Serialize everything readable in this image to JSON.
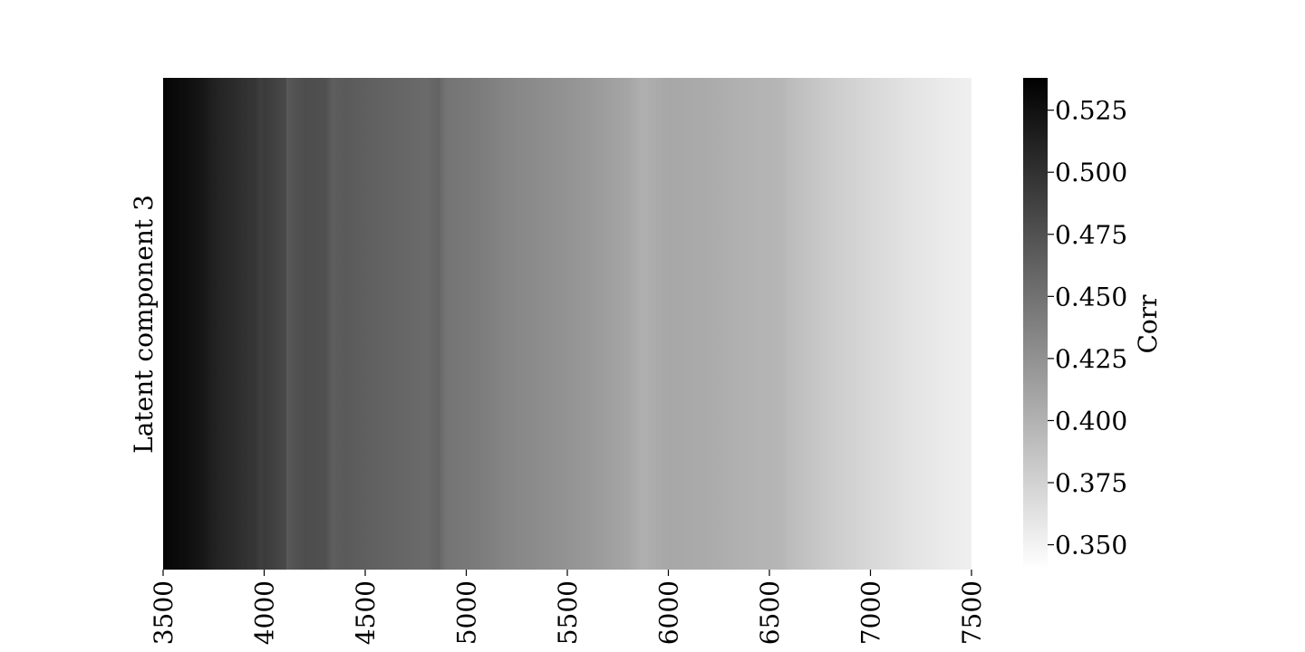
{
  "chart_data": {
    "type": "heatmap",
    "title": "",
    "xlabel": "",
    "ylabel": "Latent component 3",
    "colorbar_label": "Corr",
    "colormap": "greys",
    "xlim": [
      3500,
      7500
    ],
    "x_ticks": [
      "3500",
      "4000",
      "4500",
      "5000",
      "5500",
      "6000",
      "6500",
      "7000",
      "7500"
    ],
    "colorbar_range": [
      0.34,
      0.538
    ],
    "colorbar_ticks": [
      "0.525",
      "0.500",
      "0.475",
      "0.450",
      "0.425",
      "0.400",
      "0.375",
      "0.350"
    ],
    "rows": [
      "Latent component 3"
    ],
    "x": [
      3500,
      3600,
      3700,
      3750,
      3800,
      3850,
      3900,
      3950,
      3980,
      4000,
      4100,
      4110,
      4200,
      4300,
      4340,
      4400,
      4500,
      4600,
      4700,
      4800,
      4860,
      4900,
      5000,
      5200,
      5400,
      5600,
      5800,
      5870,
      6000,
      6200,
      6400,
      6560,
      6600,
      6800,
      7000,
      7200,
      7400,
      7500
    ],
    "values": [
      0.534,
      0.528,
      0.52,
      0.512,
      0.508,
      0.505,
      0.5,
      0.497,
      0.49,
      0.492,
      0.482,
      0.47,
      0.478,
      0.476,
      0.465,
      0.468,
      0.464,
      0.461,
      0.458,
      0.455,
      0.46,
      0.448,
      0.445,
      0.435,
      0.428,
      0.42,
      0.41,
      0.402,
      0.408,
      0.405,
      0.4,
      0.397,
      0.392,
      0.38,
      0.37,
      0.362,
      0.355,
      0.352
    ]
  }
}
